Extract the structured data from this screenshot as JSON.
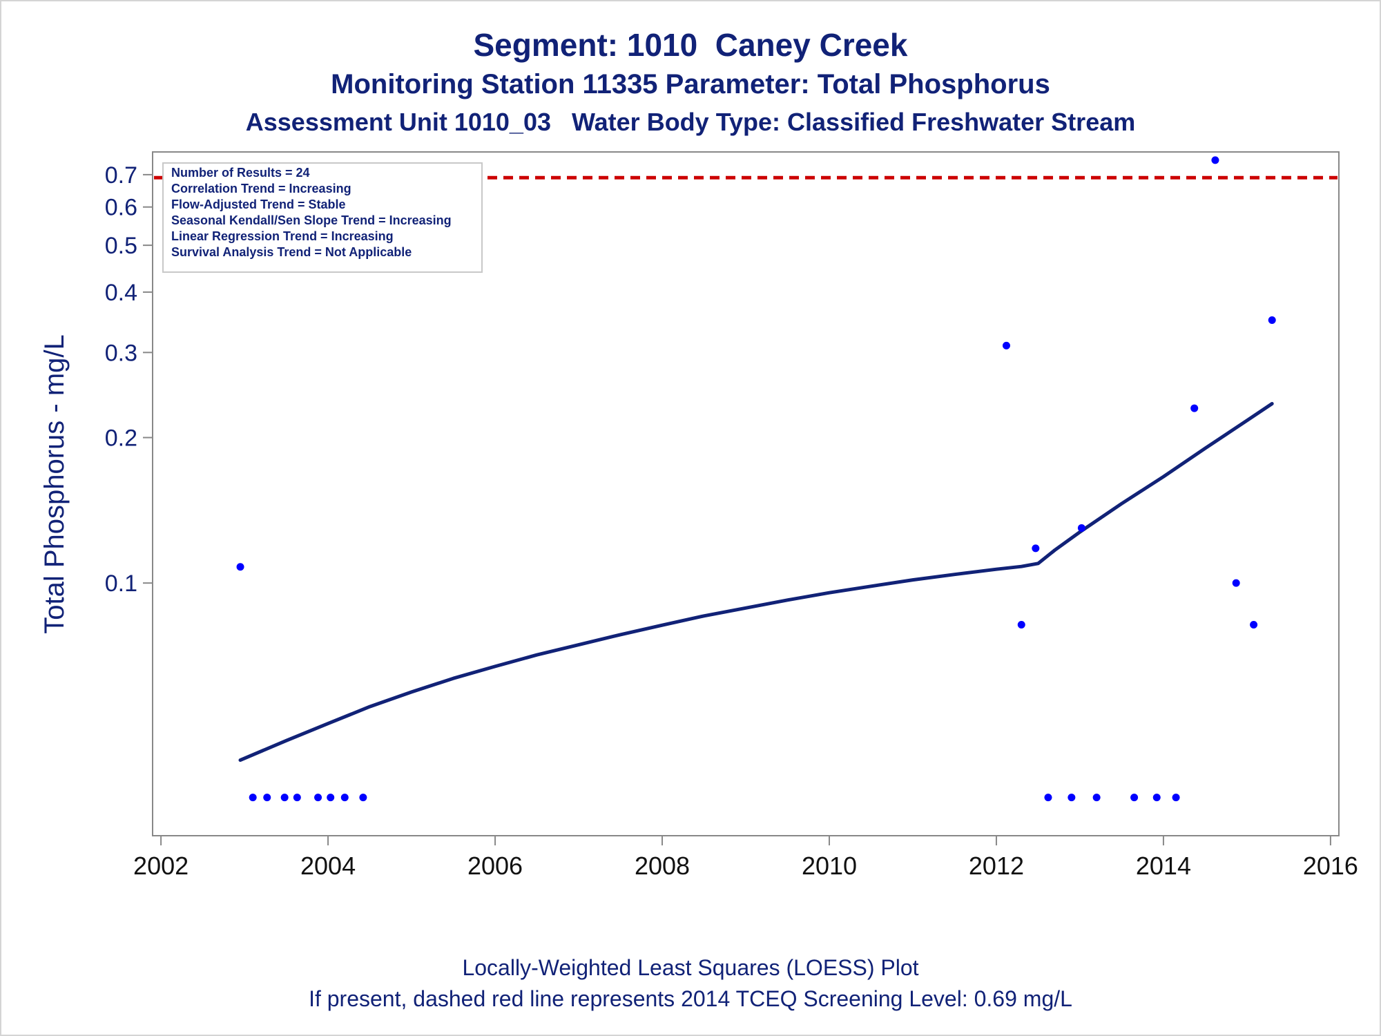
{
  "header": {
    "title": "Segment: 1010  Caney Creek",
    "subtitle1": "Monitoring Station 11335 Parameter: Total Phosphorus",
    "subtitle2": "Assessment Unit 1010_03   Water Body Type: Classified Freshwater Stream"
  },
  "footer": {
    "line1": "Locally-Weighted Least Squares (LOESS) Plot",
    "line2": "If present, dashed red line represents 2014 TCEQ Screening Level: 0.69 mg/L"
  },
  "chart_data": {
    "type": "scatter",
    "ylabel": "Total Phosphorus - mg/L",
    "xlabel": "",
    "xlim": [
      2001.9,
      2016.1
    ],
    "ylim": [
      0.03,
      0.78
    ],
    "yscale": "log",
    "xticks": [
      {
        "value": 2002,
        "label": "2002"
      },
      {
        "value": 2004,
        "label": "2004"
      },
      {
        "value": 2006,
        "label": "2006"
      },
      {
        "value": 2008,
        "label": "2008"
      },
      {
        "value": 2010,
        "label": "2010"
      },
      {
        "value": 2012,
        "label": "2012"
      },
      {
        "value": 2014,
        "label": "2014"
      },
      {
        "value": 2016,
        "label": "2016"
      }
    ],
    "yticks": [
      {
        "value": 0.1,
        "label": "0.1"
      },
      {
        "value": 0.2,
        "label": "0.2"
      },
      {
        "value": 0.3,
        "label": "0.3"
      },
      {
        "value": 0.4,
        "label": "0.4"
      },
      {
        "value": 0.5,
        "label": "0.5"
      },
      {
        "value": 0.6,
        "label": "0.6"
      },
      {
        "value": 0.7,
        "label": "0.7"
      }
    ],
    "grid": false,
    "colors": {
      "points": "#0000ff",
      "loess": "#112277",
      "screening": "#cc0000",
      "text": "#112277",
      "axis": "#888888"
    },
    "stats_box": {
      "placement": "top-left",
      "lines": [
        "Number of Results = 24",
        "Correlation Trend = Increasing",
        "Flow-Adjusted Trend = Stable",
        "Seasonal Kendall/Sen Slope Trend = Increasing",
        "Linear Regression Trend = Increasing",
        "Survival Analysis Trend = Not Applicable"
      ]
    },
    "screening_level": 0.69,
    "points": [
      {
        "x": 2002.95,
        "y": 0.108
      },
      {
        "x": 2003.1,
        "y": 0.036
      },
      {
        "x": 2003.27,
        "y": 0.036
      },
      {
        "x": 2003.48,
        "y": 0.036
      },
      {
        "x": 2003.63,
        "y": 0.036
      },
      {
        "x": 2003.88,
        "y": 0.036
      },
      {
        "x": 2004.03,
        "y": 0.036
      },
      {
        "x": 2004.2,
        "y": 0.036
      },
      {
        "x": 2004.42,
        "y": 0.036
      },
      {
        "x": 2012.12,
        "y": 0.31
      },
      {
        "x": 2012.3,
        "y": 0.082
      },
      {
        "x": 2012.47,
        "y": 0.118
      },
      {
        "x": 2012.62,
        "y": 0.036
      },
      {
        "x": 2012.9,
        "y": 0.036
      },
      {
        "x": 2013.02,
        "y": 0.13
      },
      {
        "x": 2013.2,
        "y": 0.036
      },
      {
        "x": 2013.65,
        "y": 0.036
      },
      {
        "x": 2013.92,
        "y": 0.036
      },
      {
        "x": 2014.15,
        "y": 0.036
      },
      {
        "x": 2014.37,
        "y": 0.23
      },
      {
        "x": 2014.62,
        "y": 0.75
      },
      {
        "x": 2014.87,
        "y": 0.1
      },
      {
        "x": 2015.08,
        "y": 0.082
      },
      {
        "x": 2015.3,
        "y": 0.35
      }
    ],
    "loess": [
      {
        "x": 2002.95,
        "y": 0.043
      },
      {
        "x": 2003.5,
        "y": 0.0472
      },
      {
        "x": 2004.0,
        "y": 0.0512
      },
      {
        "x": 2004.5,
        "y": 0.0555
      },
      {
        "x": 2005.0,
        "y": 0.0595
      },
      {
        "x": 2005.5,
        "y": 0.0635
      },
      {
        "x": 2006.0,
        "y": 0.0672
      },
      {
        "x": 2006.5,
        "y": 0.071
      },
      {
        "x": 2007.0,
        "y": 0.0745
      },
      {
        "x": 2007.5,
        "y": 0.0782
      },
      {
        "x": 2008.0,
        "y": 0.0818
      },
      {
        "x": 2008.5,
        "y": 0.0855
      },
      {
        "x": 2009.0,
        "y": 0.0888
      },
      {
        "x": 2009.5,
        "y": 0.0922
      },
      {
        "x": 2010.0,
        "y": 0.0955
      },
      {
        "x": 2010.5,
        "y": 0.0985
      },
      {
        "x": 2011.0,
        "y": 0.1015
      },
      {
        "x": 2011.5,
        "y": 0.1042
      },
      {
        "x": 2012.0,
        "y": 0.1068
      },
      {
        "x": 2012.3,
        "y": 0.1082
      },
      {
        "x": 2012.5,
        "y": 0.1098
      },
      {
        "x": 2012.7,
        "y": 0.117
      },
      {
        "x": 2013.0,
        "y": 0.1275
      },
      {
        "x": 2013.5,
        "y": 0.146
      },
      {
        "x": 2014.0,
        "y": 0.166
      },
      {
        "x": 2014.5,
        "y": 0.19
      },
      {
        "x": 2015.0,
        "y": 0.217
      },
      {
        "x": 2015.3,
        "y": 0.235
      }
    ]
  }
}
